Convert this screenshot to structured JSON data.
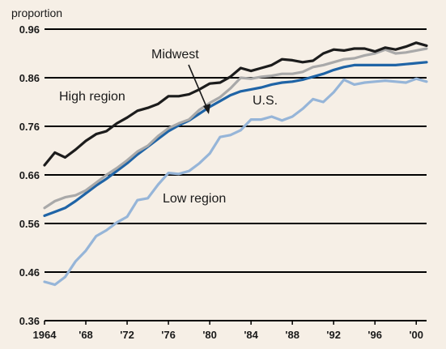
{
  "chart_data": {
    "type": "line",
    "ylabel": "proportion",
    "ylim": [
      0.36,
      0.96
    ],
    "yticks": [
      0.36,
      0.46,
      0.56,
      0.66,
      0.76,
      0.86,
      0.96
    ],
    "ytick_labels": [
      "0.36",
      "0.46",
      "0.56",
      "0.66",
      "0.76",
      "0.86",
      "0.96"
    ],
    "xlim": [
      1964,
      2001
    ],
    "xticks": [
      1964,
      1968,
      1972,
      1976,
      1980,
      1984,
      1988,
      1992,
      1996,
      2000
    ],
    "xtick_labels": [
      "1964",
      "'68",
      "'72",
      "'76",
      "'80",
      "'84",
      "'88",
      "'92",
      "'96",
      "'00"
    ],
    "grid": "horizontal",
    "colors": {
      "background": "#f6efe6",
      "High region": "#1c1c1c",
      "Midwest": "#a9a9a9",
      "U.S.": "#1f64a6",
      "Low region": "#96b5d8"
    },
    "x": [
      1964,
      1965,
      1966,
      1967,
      1968,
      1969,
      1970,
      1971,
      1972,
      1973,
      1974,
      1975,
      1976,
      1977,
      1978,
      1979,
      1980,
      1981,
      1982,
      1983,
      1984,
      1985,
      1986,
      1987,
      1988,
      1989,
      1990,
      1991,
      1992,
      1993,
      1994,
      1995,
      1996,
      1997,
      1998,
      1999,
      2000,
      2001
    ],
    "series": [
      {
        "name": "High region",
        "values": [
          0.68,
          0.706,
          0.696,
          0.712,
          0.73,
          0.744,
          0.75,
          0.766,
          0.778,
          0.792,
          0.798,
          0.806,
          0.822,
          0.822,
          0.826,
          0.836,
          0.848,
          0.85,
          0.862,
          0.88,
          0.874,
          0.88,
          0.886,
          0.898,
          0.896,
          0.892,
          0.895,
          0.91,
          0.918,
          0.916,
          0.92,
          0.92,
          0.914,
          0.922,
          0.918,
          0.924,
          0.932,
          0.926
        ]
      },
      {
        "name": "Midwest",
        "values": [
          0.592,
          0.606,
          0.614,
          0.618,
          0.628,
          0.644,
          0.66,
          0.674,
          0.69,
          0.708,
          0.72,
          0.74,
          0.756,
          0.766,
          0.774,
          0.794,
          0.808,
          0.82,
          0.838,
          0.86,
          0.858,
          0.862,
          0.864,
          0.868,
          0.868,
          0.872,
          0.882,
          0.886,
          0.892,
          0.898,
          0.9,
          0.906,
          0.91,
          0.918,
          0.91,
          0.912,
          0.916,
          0.92
        ]
      },
      {
        "name": "U.S.",
        "values": [
          0.576,
          0.584,
          0.592,
          0.606,
          0.622,
          0.638,
          0.652,
          0.668,
          0.684,
          0.702,
          0.718,
          0.734,
          0.75,
          0.762,
          0.772,
          0.786,
          0.8,
          0.812,
          0.824,
          0.832,
          0.836,
          0.84,
          0.846,
          0.85,
          0.852,
          0.856,
          0.862,
          0.868,
          0.876,
          0.882,
          0.886,
          0.886,
          0.886,
          0.886,
          0.886,
          0.888,
          0.89,
          0.892
        ]
      },
      {
        "name": "Low region",
        "values": [
          0.44,
          0.434,
          0.45,
          0.482,
          0.504,
          0.534,
          0.546,
          0.562,
          0.574,
          0.608,
          0.612,
          0.64,
          0.664,
          0.662,
          0.668,
          0.684,
          0.704,
          0.738,
          0.742,
          0.752,
          0.774,
          0.774,
          0.78,
          0.772,
          0.78,
          0.796,
          0.816,
          0.81,
          0.83,
          0.856,
          0.846,
          0.85,
          0.852,
          0.854,
          0.852,
          0.85,
          0.858,
          0.852
        ]
      }
    ],
    "annotations": [
      {
        "text": "Midwest",
        "arrow": true
      },
      {
        "text": "High region"
      },
      {
        "text": "U.S."
      },
      {
        "text": "Low region"
      }
    ]
  }
}
